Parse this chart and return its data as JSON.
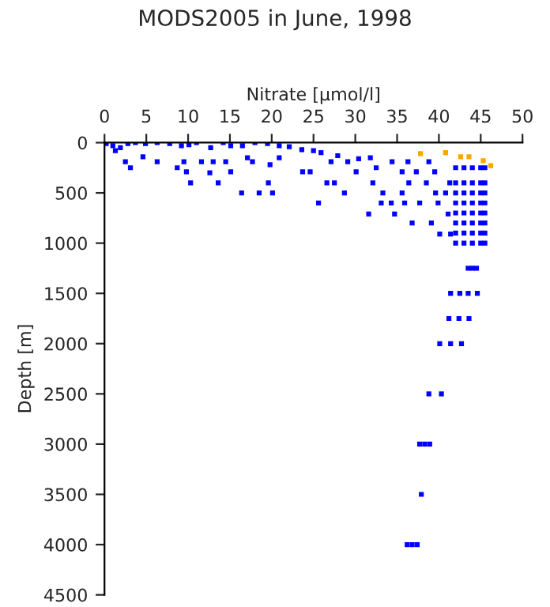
{
  "chart_data": {
    "type": "scatter",
    "title": "MODS2005 in June, 1998",
    "xlabel": "Nitrate [µmol/l]",
    "ylabel": "Depth [m]",
    "xlim": [
      0,
      50
    ],
    "xticks": [
      0,
      5,
      10,
      15,
      20,
      25,
      30,
      35,
      40,
      45,
      50
    ],
    "ylim": [
      4500,
      0
    ],
    "yticks": [
      0,
      500,
      1000,
      1500,
      2000,
      2500,
      3000,
      3500,
      4000,
      4500
    ],
    "marker": "square",
    "grid": false,
    "legend": false,
    "series": [
      {
        "color": "#0000ff",
        "x": [
          0.2,
          1,
          1.9,
          2.8,
          3.7,
          4.9,
          6.3,
          7.8,
          9.2,
          10.1,
          11,
          12.7,
          14.2,
          15.1,
          16.5,
          18,
          19.5,
          20.9,
          22.1,
          23.6,
          25,
          25.9,
          1.3,
          2.5,
          3.1,
          4.6,
          6.3,
          8.7,
          9.8,
          10.3,
          9.5,
          11.6,
          12.6,
          13.6,
          13.0,
          14.5,
          15.1,
          16.4,
          17.1,
          17.7,
          18.5,
          19.6,
          20.1,
          19.8,
          20.9,
          23.7,
          24.6,
          25.6,
          26.6,
          27.5,
          27.1,
          27.9,
          28.7,
          29.1,
          30.1,
          30.4,
          31.8,
          31.6,
          32.1,
          32.5,
          33.1,
          33.3,
          34.3,
          34.4,
          34.7,
          35.6,
          35.6,
          35.9,
          36.3,
          36.4,
          36.8,
          37.3,
          37.7,
          38.5,
          38.8,
          39.1,
          39.5,
          39.6,
          39.9,
          40.1,
          41.1,
          41.3,
          41.4,
          40.8,
          42,
          43,
          44,
          45,
          45.5,
          42,
          43,
          44,
          45,
          45.5,
          42,
          43,
          44,
          45,
          45.5,
          42,
          43,
          44,
          45,
          45.5,
          42,
          43,
          44,
          45,
          45.5,
          42,
          43,
          44,
          45,
          45.5,
          42,
          43,
          44,
          45,
          45.5,
          42,
          43,
          44,
          45,
          45.5,
          43.5,
          44,
          44.5,
          41.4,
          42.5,
          43.5,
          44.6,
          41.2,
          42.4,
          43.6,
          40.1,
          41.4,
          42.7,
          38.8,
          40.3,
          37.7,
          38.3,
          38.9,
          37.9,
          36.2,
          36.8,
          37.4
        ],
        "values": [
          10,
          30,
          50,
          10,
          0,
          10,
          0,
          10,
          30,
          20,
          0,
          50,
          0,
          30,
          30,
          0,
          10,
          30,
          40,
          70,
          80,
          100,
          80,
          190,
          250,
          140,
          190,
          250,
          290,
          400,
          190,
          190,
          300,
          400,
          190,
          190,
          290,
          500,
          150,
          190,
          500,
          400,
          500,
          220,
          150,
          290,
          290,
          600,
          400,
          400,
          190,
          130,
          500,
          190,
          290,
          160,
          150,
          710,
          400,
          250,
          600,
          500,
          600,
          190,
          710,
          290,
          500,
          600,
          190,
          400,
          800,
          290,
          600,
          400,
          190,
          800,
          290,
          500,
          600,
          910,
          710,
          400,
          910,
          500,
          250,
          250,
          250,
          250,
          250,
          400,
          400,
          400,
          400,
          400,
          500,
          500,
          500,
          500,
          500,
          600,
          600,
          600,
          600,
          600,
          700,
          700,
          700,
          700,
          700,
          800,
          800,
          800,
          800,
          800,
          900,
          900,
          900,
          900,
          900,
          1000,
          1000,
          1000,
          1000,
          1000,
          1250,
          1250,
          1250,
          1500,
          1500,
          1500,
          1500,
          1750,
          1750,
          1750,
          2000,
          2000,
          2000,
          2500,
          2500,
          3000,
          3000,
          3000,
          3500,
          4000,
          4000,
          4000
        ]
      },
      {
        "color": "#ffa500",
        "x": [
          37.8,
          40.8,
          42.6,
          43.6,
          45.3,
          46.2
        ],
        "values": [
          110,
          100,
          140,
          140,
          180,
          230
        ]
      }
    ]
  }
}
